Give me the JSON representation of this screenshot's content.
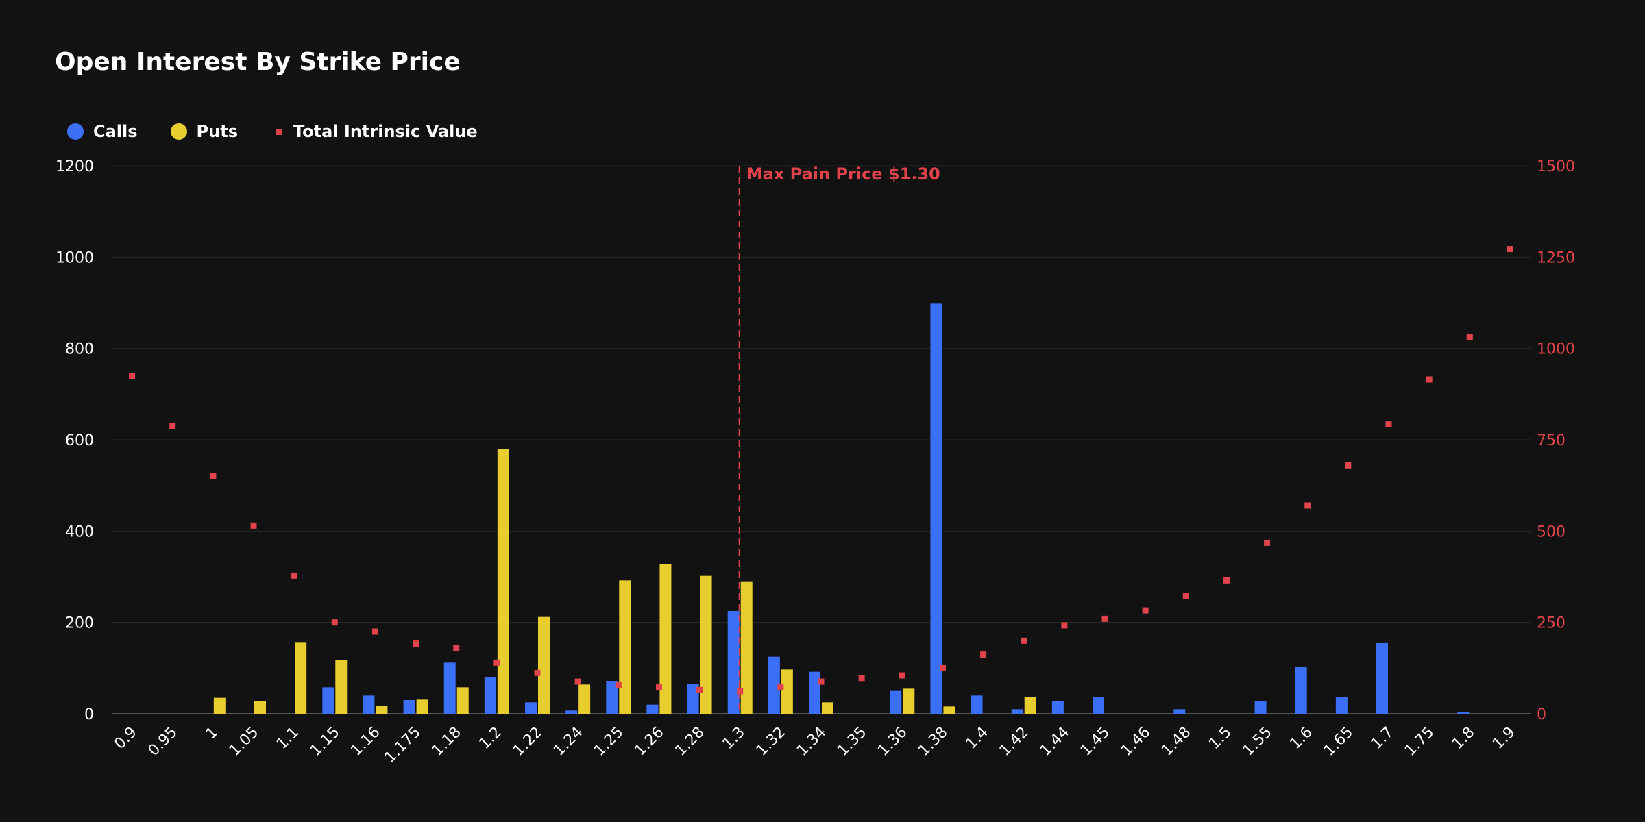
{
  "chart_data": {
    "type": "bar",
    "title": "Open Interest By Strike Price",
    "categories": [
      "0.9",
      "0.95",
      "1",
      "1.05",
      "1.1",
      "1.15",
      "1.16",
      "1.175",
      "1.18",
      "1.2",
      "1.22",
      "1.24",
      "1.25",
      "1.26",
      "1.28",
      "1.3",
      "1.32",
      "1.34",
      "1.35",
      "1.36",
      "1.38",
      "1.4",
      "1.42",
      "1.44",
      "1.45",
      "1.46",
      "1.48",
      "1.5",
      "1.55",
      "1.6",
      "1.65",
      "1.7",
      "1.75",
      "1.8",
      "1.9"
    ],
    "series": [
      {
        "name": "Calls",
        "type": "bar",
        "axis": "left",
        "color": "#3b6ff5",
        "values": [
          0,
          0,
          0,
          0,
          0,
          58,
          40,
          30,
          112,
          80,
          25,
          7,
          72,
          20,
          65,
          225,
          125,
          92,
          0,
          50,
          898,
          40,
          10,
          28,
          37,
          0,
          10,
          0,
          28,
          103,
          37,
          155,
          0,
          4,
          0
        ]
      },
      {
        "name": "Puts",
        "type": "bar",
        "axis": "left",
        "color": "#e7cd2e",
        "values": [
          0,
          0,
          35,
          28,
          157,
          118,
          18,
          31,
          58,
          580,
          212,
          64,
          292,
          328,
          302,
          290,
          97,
          25,
          0,
          55,
          16,
          0,
          37,
          0,
          0,
          0,
          0,
          0,
          0,
          0,
          0,
          0,
          0,
          0,
          0
        ]
      },
      {
        "name": "Total Intrinsic Value",
        "type": "scatter",
        "axis": "right",
        "color": "#e0434b",
        "values": [
          925,
          788,
          650,
          515,
          378,
          250,
          225,
          192,
          180,
          140,
          112,
          88,
          78,
          72,
          65,
          62,
          72,
          88,
          98,
          105,
          125,
          162,
          200,
          242,
          260,
          283,
          323,
          365,
          468,
          570,
          680,
          792,
          915,
          1032,
          1272
        ]
      }
    ],
    "yleft": {
      "ylim": [
        0,
        1200
      ],
      "ticks": [
        "0",
        "200",
        "400",
        "600",
        "800",
        "1000",
        "1200"
      ]
    },
    "yright": {
      "ylim": [
        0,
        1500
      ],
      "ticks": [
        "0",
        "250",
        "500",
        "750",
        "1000",
        "1250",
        "1500"
      ],
      "color": "#e0434b"
    },
    "annotation": {
      "label": "Max Pain Price $1.30",
      "category": "1.3",
      "color": "#e0434b"
    },
    "grid": true,
    "legend": "top-left"
  }
}
